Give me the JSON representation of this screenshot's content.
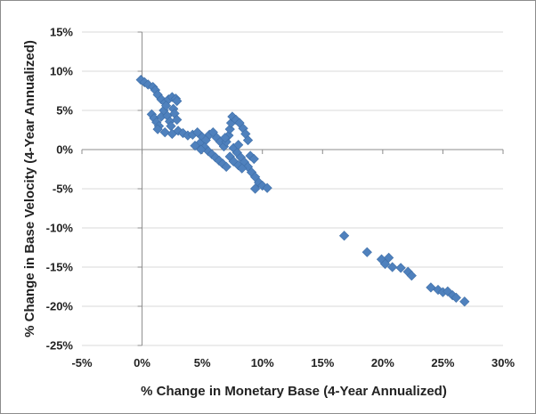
{
  "chart_data": {
    "type": "scatter",
    "title": "",
    "xlabel": "% Change in Monetary Base (4-Year Annualized)",
    "ylabel": "% Change in Base Velocity (4-Year Annualized)",
    "xlim": [
      -5,
      30
    ],
    "ylim": [
      -25,
      15
    ],
    "x_ticks": [
      -5,
      0,
      5,
      10,
      15,
      20,
      25,
      30
    ],
    "y_ticks": [
      15,
      10,
      5,
      0,
      -5,
      -10,
      -15,
      -20,
      -25
    ],
    "x_tick_labels": [
      "-5%",
      "0%",
      "5%",
      "10%",
      "15%",
      "20%",
      "25%",
      "30%"
    ],
    "y_tick_labels": [
      "15%",
      "10%",
      "5%",
      "0%",
      "-5%",
      "-10%",
      "-15%",
      "-20%",
      "-25%"
    ],
    "grid": "horizontal",
    "legend": "none",
    "marker": "diamond",
    "color": "#4f81bd",
    "points": [
      [
        -0.1,
        8.9
      ],
      [
        0.2,
        8.6
      ],
      [
        0.5,
        8.3
      ],
      [
        0.9,
        8.0
      ],
      [
        1.1,
        7.6
      ],
      [
        1.3,
        7.0
      ],
      [
        1.6,
        6.4
      ],
      [
        1.9,
        6.0
      ],
      [
        2.2,
        6.4
      ],
      [
        2.5,
        6.7
      ],
      [
        2.8,
        6.5
      ],
      [
        2.9,
        6.2
      ],
      [
        0.8,
        4.5
      ],
      [
        1.0,
        4.0
      ],
      [
        1.2,
        3.5
      ],
      [
        1.4,
        3.0
      ],
      [
        1.3,
        2.6
      ],
      [
        1.6,
        4.2
      ],
      [
        1.8,
        5.0
      ],
      [
        2.0,
        5.6
      ],
      [
        2.1,
        4.3
      ],
      [
        2.3,
        3.6
      ],
      [
        2.4,
        3.0
      ],
      [
        2.6,
        5.2
      ],
      [
        2.7,
        4.6
      ],
      [
        2.9,
        3.8
      ],
      [
        1.9,
        2.2
      ],
      [
        2.5,
        2.0
      ],
      [
        3.0,
        2.4
      ],
      [
        3.4,
        2.1
      ],
      [
        3.8,
        1.8
      ],
      [
        4.2,
        1.9
      ],
      [
        4.6,
        2.2
      ],
      [
        5.0,
        1.6
      ],
      [
        5.3,
        1.2
      ],
      [
        5.6,
        1.9
      ],
      [
        5.9,
        2.2
      ],
      [
        6.2,
        1.5
      ],
      [
        6.5,
        1.0
      ],
      [
        4.8,
        0.8
      ],
      [
        5.2,
        0.3
      ],
      [
        5.5,
        -0.2
      ],
      [
        5.8,
        -0.6
      ],
      [
        6.1,
        -1.0
      ],
      [
        6.4,
        -1.4
      ],
      [
        6.7,
        -1.8
      ],
      [
        7.0,
        -2.2
      ],
      [
        4.4,
        0.5
      ],
      [
        4.9,
        0.0
      ],
      [
        6.8,
        0.4
      ],
      [
        7.0,
        1.0
      ],
      [
        7.2,
        1.8
      ],
      [
        7.3,
        2.6
      ],
      [
        7.4,
        3.4
      ],
      [
        7.5,
        4.2
      ],
      [
        7.8,
        3.8
      ],
      [
        8.1,
        3.4
      ],
      [
        8.4,
        2.7
      ],
      [
        8.6,
        2.0
      ],
      [
        8.8,
        1.2
      ],
      [
        7.6,
        0.2
      ],
      [
        7.9,
        -0.4
      ],
      [
        8.2,
        -1.0
      ],
      [
        8.5,
        -1.6
      ],
      [
        8.8,
        -2.2
      ],
      [
        9.1,
        -2.9
      ],
      [
        9.4,
        -3.5
      ],
      [
        9.7,
        -4.2
      ],
      [
        9.4,
        -5.0
      ],
      [
        10.0,
        -4.6
      ],
      [
        10.4,
        -4.9
      ],
      [
        7.3,
        -0.9
      ],
      [
        7.6,
        -1.5
      ],
      [
        8.0,
        -2.0
      ],
      [
        8.3,
        -2.4
      ],
      [
        9.0,
        -0.8
      ],
      [
        9.3,
        -1.2
      ],
      [
        6.9,
        1.5
      ],
      [
        8.0,
        0.6
      ],
      [
        16.8,
        -11.0
      ],
      [
        18.7,
        -13.1
      ],
      [
        19.9,
        -14.0
      ],
      [
        20.2,
        -14.6
      ],
      [
        20.5,
        -13.8
      ],
      [
        20.8,
        -15.0
      ],
      [
        21.5,
        -15.1
      ],
      [
        22.1,
        -15.6
      ],
      [
        22.4,
        -16.1
      ],
      [
        24.0,
        -17.6
      ],
      [
        24.6,
        -17.9
      ],
      [
        25.0,
        -18.2
      ],
      [
        25.4,
        -18.1
      ],
      [
        25.8,
        -18.6
      ],
      [
        26.1,
        -18.9
      ],
      [
        26.8,
        -19.4
      ]
    ]
  }
}
